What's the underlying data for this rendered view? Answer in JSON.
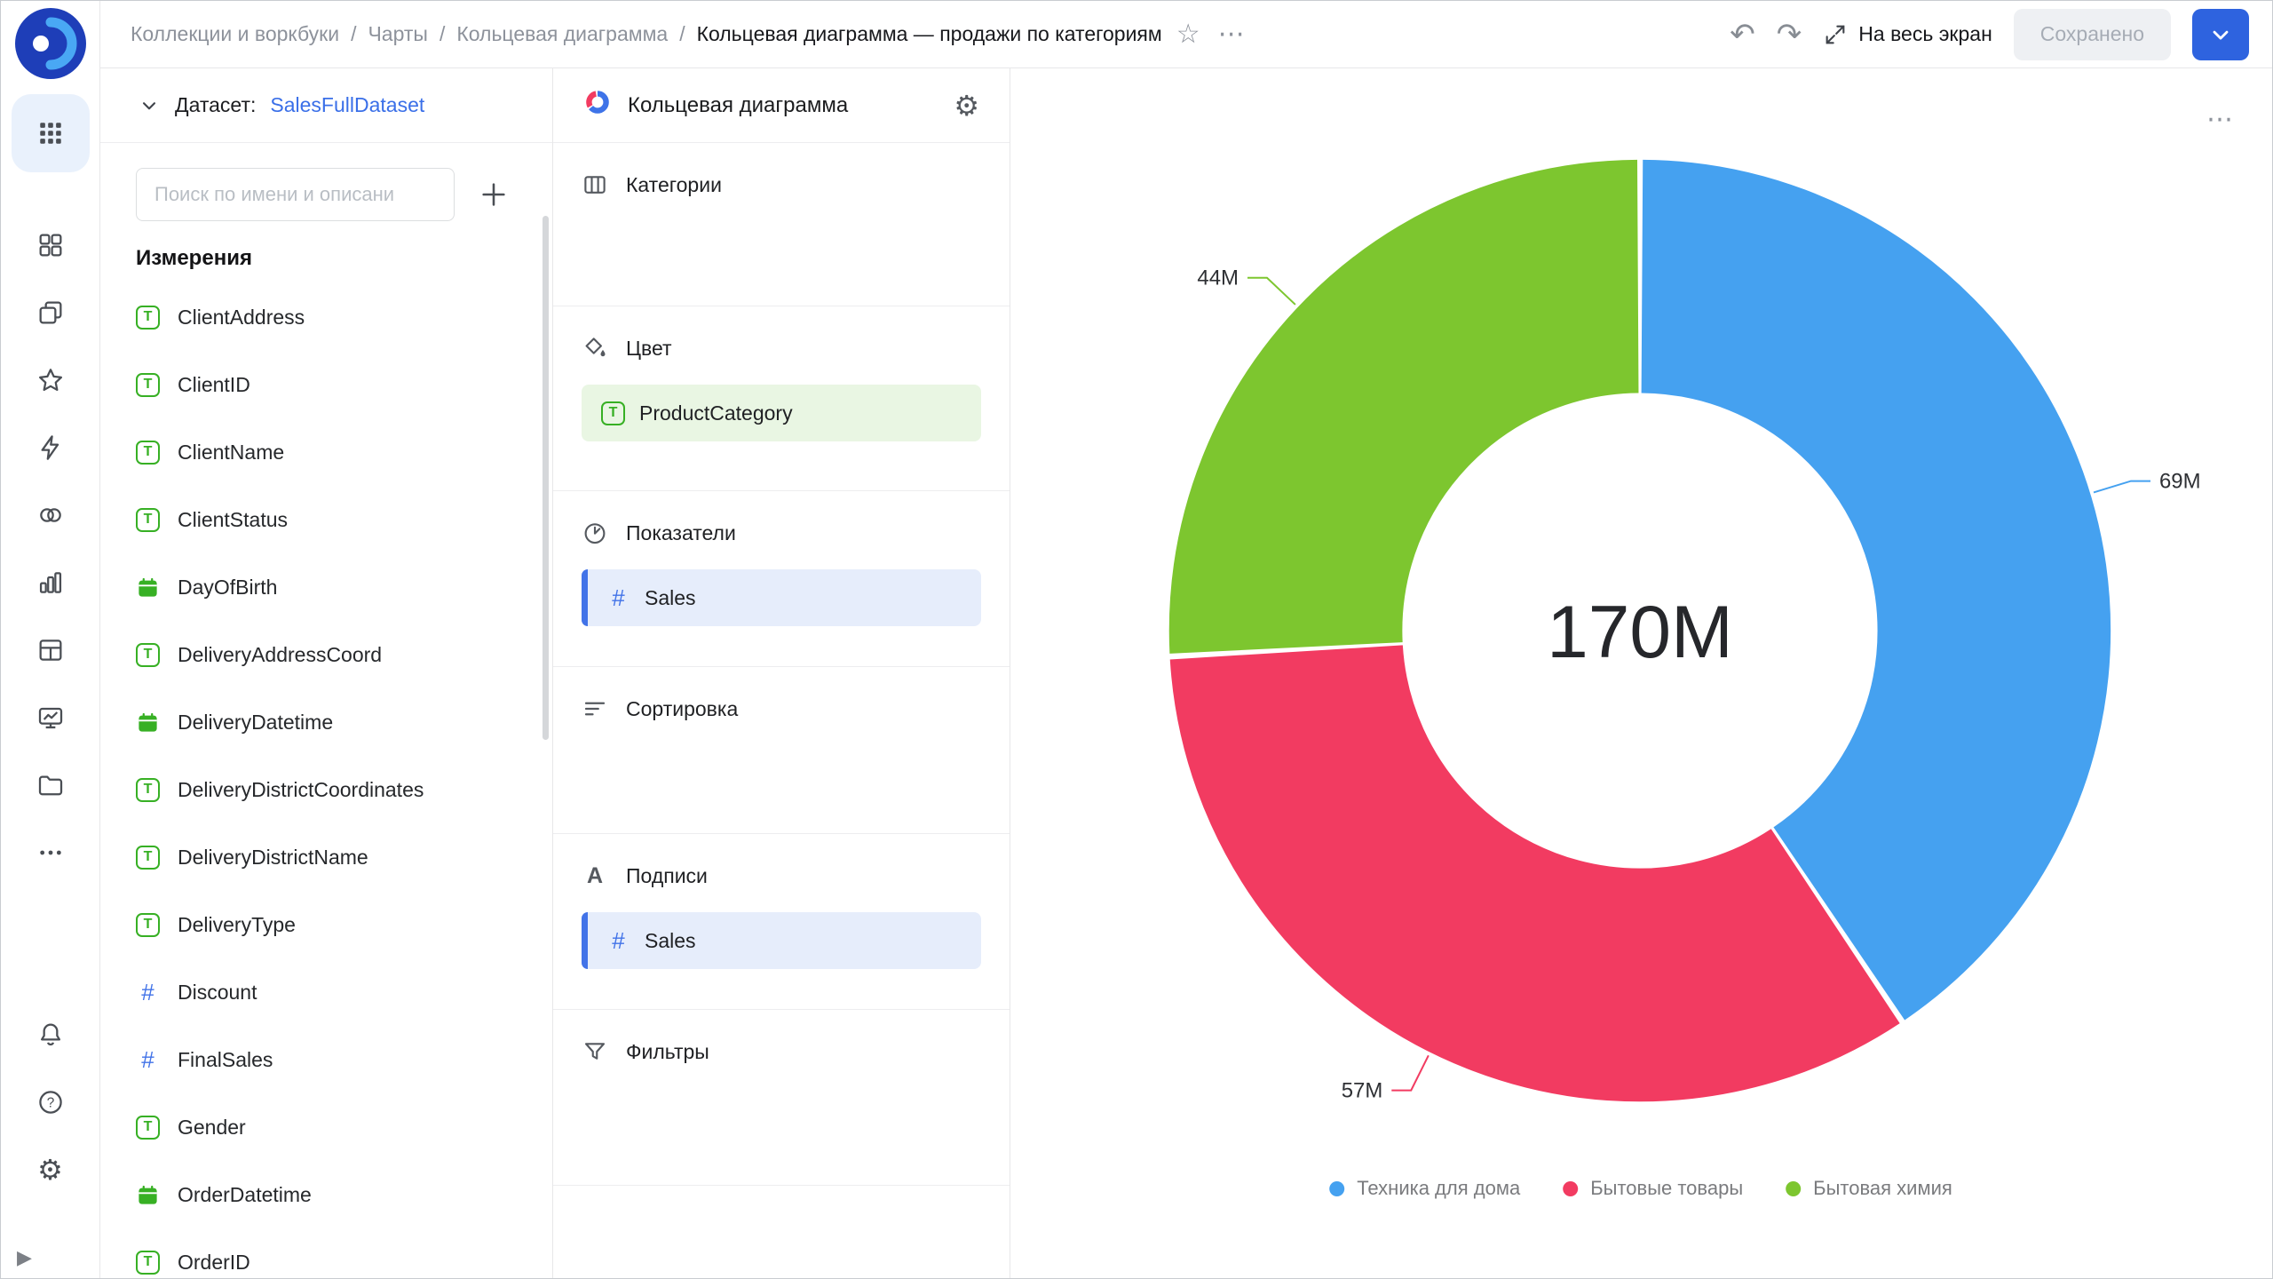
{
  "header": {
    "breadcrumbs": [
      "Коллекции и воркбуки",
      "Чарты",
      "Кольцевая диаграмма"
    ],
    "separator": "/",
    "title": "Кольцевая диаграмма — продажи по категориям",
    "fullscreen_label": "На весь экран",
    "save_status": "Сохранено"
  },
  "sidebar_panel": {
    "dataset_label": "Датасет:",
    "dataset_name": "SalesFullDataset",
    "search_placeholder": "Поиск по имени и описани",
    "dimensions_title": "Измерения",
    "fields": [
      {
        "name": "ClientAddress",
        "type": "text"
      },
      {
        "name": "ClientID",
        "type": "text"
      },
      {
        "name": "ClientName",
        "type": "text"
      },
      {
        "name": "ClientStatus",
        "type": "text"
      },
      {
        "name": "DayOfBirth",
        "type": "date"
      },
      {
        "name": "DeliveryAddressCoord",
        "type": "text"
      },
      {
        "name": "DeliveryDatetime",
        "type": "date"
      },
      {
        "name": "DeliveryDistrictCoordinates",
        "type": "text"
      },
      {
        "name": "DeliveryDistrictName",
        "type": "text"
      },
      {
        "name": "DeliveryType",
        "type": "text"
      },
      {
        "name": "Discount",
        "type": "number"
      },
      {
        "name": "FinalSales",
        "type": "number"
      },
      {
        "name": "Gender",
        "type": "text"
      },
      {
        "name": "OrderDatetime",
        "type": "date"
      },
      {
        "name": "OrderID",
        "type": "text"
      }
    ]
  },
  "config_panel": {
    "chart_type": "Кольцевая диаграмма",
    "sections": {
      "categories": {
        "label": "Категории"
      },
      "color": {
        "label": "Цвет",
        "field": "ProductCategory"
      },
      "measures": {
        "label": "Показатели",
        "field": "Sales"
      },
      "sort": {
        "label": "Сортировка"
      },
      "labels": {
        "label": "Подписи",
        "field": "Sales"
      },
      "filters": {
        "label": "Фильтры"
      }
    }
  },
  "chart_data": {
    "type": "pie",
    "subtype": "donut",
    "categories": [
      "Техника для дома",
      "Бытовые товары",
      "Бытовая химия"
    ],
    "values": [
      69,
      57,
      44
    ],
    "value_unit": "M",
    "value_labels": [
      "69M",
      "57M",
      "44M"
    ],
    "center_label": "170M",
    "colors": [
      "#45A1F0",
      "#F23B61",
      "#7DC62F"
    ],
    "legend_position": "bottom",
    "start_angle_deg": 0,
    "direction": "clockwise"
  },
  "theme": {
    "accent_blue": "#2E63DF",
    "link_blue": "#3A6FE8",
    "dimension_green": "#37B024",
    "measure_blue": "#4273E8"
  }
}
